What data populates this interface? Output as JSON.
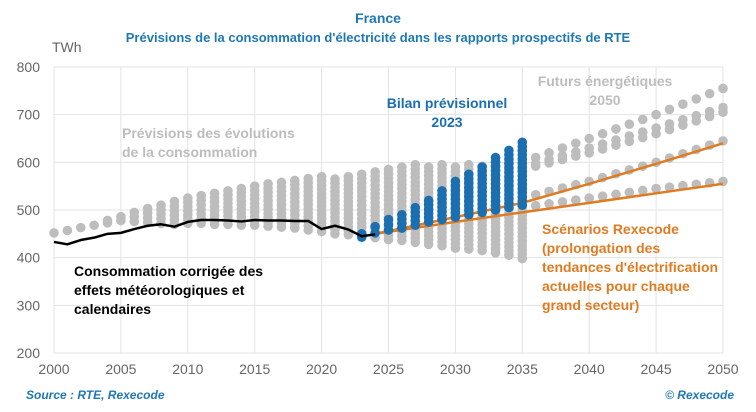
{
  "chart_data": {
    "type": "scatter",
    "title": "France",
    "subtitle": "Prévisions de la consommation d'électricité dans les rapports prospectifs de RTE",
    "ylabel": "TWh",
    "xlabel": "",
    "xlim": [
      2000,
      2050
    ],
    "ylim": [
      200,
      800
    ],
    "x_ticks": [
      "2000",
      "2005",
      "2010",
      "2015",
      "2020",
      "2025",
      "2030",
      "2035",
      "2040",
      "2045",
      "2050"
    ],
    "y_ticks": [
      "200",
      "300",
      "400",
      "500",
      "600",
      "700",
      "800"
    ],
    "grid": true,
    "colors": {
      "gray": "#bdbdbd",
      "blue": "#1b6fb0",
      "black": "#000000",
      "orange": "#e07b22",
      "title": "#1f78b4"
    },
    "annotations": {
      "previsions": [
        "Prévisions des évolutions",
        "de la consommation"
      ],
      "bilan": [
        "Bilan prévisionnel",
        "2023"
      ],
      "futurs": [
        "Futurs énergétiques",
        "2050"
      ],
      "rexecode": [
        "Scénarios Rexecode",
        "(prolongation des",
        "tendances d'électrification",
        "actuelles pour chaque",
        "grand secteur)"
      ],
      "consommation": [
        "Consommation corrigée des",
        "effets météorologiques et",
        "calendaires"
      ]
    },
    "gray_forecasts_range": [
      [
        2000,
        452,
        452
      ],
      [
        2001,
        457,
        457
      ],
      [
        2002,
        463,
        463
      ],
      [
        2003,
        468,
        468
      ],
      [
        2004,
        473,
        478
      ],
      [
        2005,
        478,
        486
      ],
      [
        2006,
        476,
        495
      ],
      [
        2007,
        474,
        503
      ],
      [
        2008,
        472,
        510
      ],
      [
        2009,
        470,
        518
      ],
      [
        2010,
        472,
        525
      ],
      [
        2011,
        472,
        530
      ],
      [
        2012,
        470,
        535
      ],
      [
        2013,
        470,
        540
      ],
      [
        2014,
        468,
        545
      ],
      [
        2015,
        468,
        550
      ],
      [
        2016,
        466,
        555
      ],
      [
        2017,
        464,
        558
      ],
      [
        2018,
        462,
        562
      ],
      [
        2019,
        458,
        566
      ],
      [
        2020,
        455,
        570
      ],
      [
        2021,
        450,
        565
      ],
      [
        2022,
        448,
        570
      ],
      [
        2023,
        445,
        575
      ],
      [
        2024,
        442,
        580
      ],
      [
        2025,
        438,
        585
      ],
      [
        2026,
        436,
        590
      ],
      [
        2027,
        432,
        595
      ],
      [
        2028,
        428,
        590
      ],
      [
        2029,
        425,
        595
      ],
      [
        2030,
        420,
        590
      ],
      [
        2031,
        418,
        595
      ],
      [
        2032,
        415,
        592
      ],
      [
        2033,
        410,
        598
      ],
      [
        2034,
        405,
        600
      ],
      [
        2035,
        398,
        600
      ]
    ],
    "blue_bilan_2023_range": [
      [
        2023,
        443,
        450
      ],
      [
        2024,
        452,
        465
      ],
      [
        2025,
        458,
        480
      ],
      [
        2026,
        462,
        490
      ],
      [
        2027,
        468,
        505
      ],
      [
        2028,
        475,
        520
      ],
      [
        2029,
        480,
        540
      ],
      [
        2030,
        485,
        560
      ],
      [
        2031,
        490,
        575
      ],
      [
        2032,
        495,
        590
      ],
      [
        2033,
        500,
        610
      ],
      [
        2034,
        505,
        625
      ],
      [
        2035,
        510,
        642
      ]
    ],
    "futurs_2050_scenarios": [
      {
        "x": [
          2035,
          2040,
          2045,
          2050
        ],
        "y": [
          600,
          650,
          700,
          755
        ]
      },
      {
        "x": [
          2035,
          2040,
          2045,
          2050
        ],
        "y": [
          590,
          630,
          672,
          715
        ]
      },
      {
        "x": [
          2035,
          2040,
          2045,
          2050
        ],
        "y": [
          585,
          620,
          660,
          705
        ]
      },
      {
        "x": [
          2035,
          2040,
          2045,
          2050
        ],
        "y": [
          525,
          560,
          600,
          645
        ]
      },
      {
        "x": [
          2035,
          2040,
          2045,
          2050
        ],
        "y": [
          505,
          525,
          545,
          560
        ]
      }
    ],
    "consommation_corrigee": {
      "x": [
        2000,
        2001,
        2002,
        2003,
        2004,
        2005,
        2006,
        2007,
        2008,
        2009,
        2010,
        2011,
        2012,
        2013,
        2014,
        2015,
        2016,
        2017,
        2018,
        2019,
        2020,
        2021,
        2022,
        2023,
        2024
      ],
      "y": [
        433,
        428,
        437,
        442,
        450,
        452,
        460,
        467,
        470,
        465,
        475,
        479,
        479,
        478,
        476,
        479,
        478,
        478,
        477,
        477,
        460,
        467,
        459,
        445,
        449
      ]
    },
    "rexecode_scenarios": [
      {
        "x": [
          2024,
          2030,
          2035,
          2040,
          2045,
          2050
        ],
        "y": [
          450,
          485,
          515,
          555,
          597,
          640
        ]
      },
      {
        "x": [
          2024,
          2030,
          2035,
          2040,
          2045,
          2050
        ],
        "y": [
          450,
          475,
          495,
          515,
          535,
          555
        ]
      }
    ]
  },
  "source": "Source : RTE, Rexecode",
  "copyright": "© Rexecode"
}
